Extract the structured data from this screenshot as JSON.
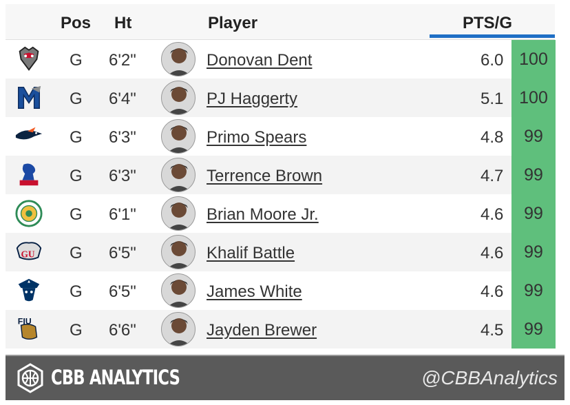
{
  "header": {
    "pos": "Pos",
    "ht": "Ht",
    "player": "Player",
    "pts": "PTS/G"
  },
  "colors": {
    "pct_fill": "#5fbf7c",
    "header_underline": "#1f6fc5",
    "footer_bg": "#5a5a5a"
  },
  "rows": [
    {
      "team_logo": "new-mexico-lobo-logo",
      "pos": "G",
      "ht": "6'2\"",
      "name": "Donovan Dent",
      "pts": "6.0",
      "pct": "100"
    },
    {
      "team_logo": "memphis-tigers-logo",
      "pos": "G",
      "ht": "6'4\"",
      "name": "PJ Haggerty",
      "pts": "5.1",
      "pct": "100"
    },
    {
      "team_logo": "utsa-roadrunners-logo",
      "pos": "G",
      "ht": "6'3\"",
      "name": "Primo Spears",
      "pts": "4.8",
      "pct": "99"
    },
    {
      "team_logo": "central-connecticut-knights-logo",
      "pos": "G",
      "ht": "6'3\"",
      "name": "Terrence Brown",
      "pts": "4.7",
      "pct": "99"
    },
    {
      "team_logo": "norfolk-state-seal-logo",
      "pos": "G",
      "ht": "6'1\"",
      "name": "Brian Moore Jr.",
      "pts": "4.6",
      "pct": "99"
    },
    {
      "team_logo": "gonzaga-bulldogs-logo",
      "pos": "G",
      "ht": "6'5\"",
      "name": "Khalif Battle",
      "pts": "4.6",
      "pct": "99"
    },
    {
      "team_logo": "new-orleans-privateers-logo",
      "pos": "G",
      "ht": "6'5\"",
      "name": "James White",
      "pts": "4.6",
      "pct": "99"
    },
    {
      "team_logo": "fiu-panthers-logo",
      "pos": "G",
      "ht": "6'6\"",
      "name": "Jayden Brewer",
      "pts": "4.5",
      "pct": "99"
    }
  ],
  "footer": {
    "brand": "CBB ANALYTICS",
    "handle": "@CBBAnalytics"
  }
}
